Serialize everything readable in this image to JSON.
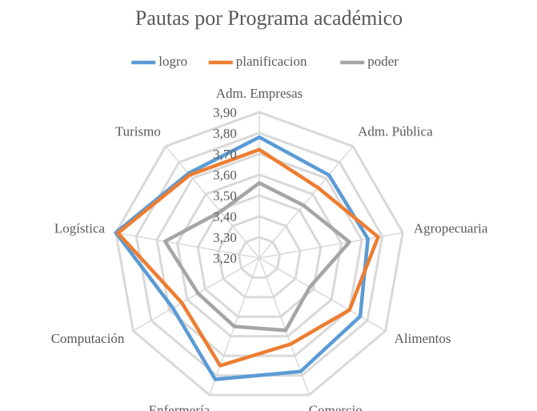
{
  "chart_data": {
    "type": "radar",
    "title": "Pautas por Programa académico",
    "categories": [
      "Adm. Empresas",
      "Adm. Pública",
      "Agropecuaria",
      "Alimentos",
      "Comercio",
      "Enfermería",
      "Computación",
      "Logística",
      "Turismo"
    ],
    "series": [
      {
        "name": "logro",
        "color": "#5b9bd5",
        "values": [
          3.78,
          3.72,
          3.73,
          3.76,
          3.78,
          3.82,
          3.68,
          3.9,
          3.73
        ]
      },
      {
        "name": "planificacion",
        "color": "#ed7d31",
        "values": [
          3.72,
          3.64,
          3.78,
          3.7,
          3.64,
          3.75,
          3.63,
          3.89,
          3.72
        ]
      },
      {
        "name": "poder",
        "color": "#a5a5a5",
        "values": [
          3.56,
          3.53,
          3.64,
          3.48,
          3.57,
          3.55,
          3.54,
          3.66,
          3.49
        ]
      }
    ],
    "ylim": [
      3.2,
      3.9
    ],
    "yticks": [
      {
        "value": 3.2,
        "label": "3,20"
      },
      {
        "value": 3.3,
        "label": "3,30"
      },
      {
        "value": 3.4,
        "label": "3,40"
      },
      {
        "value": 3.5,
        "label": "3,50"
      },
      {
        "value": 3.6,
        "label": "3,60"
      },
      {
        "value": 3.7,
        "label": "3,70"
      },
      {
        "value": 3.8,
        "label": "3,80"
      },
      {
        "value": 3.9,
        "label": "3,90"
      }
    ],
    "legend": "top"
  }
}
